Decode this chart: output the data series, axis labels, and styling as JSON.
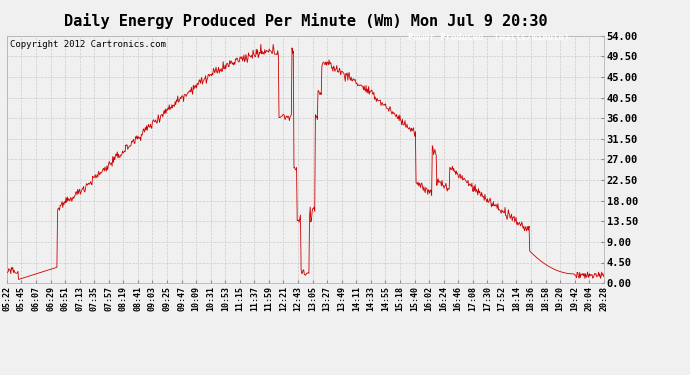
{
  "title": "Daily Energy Produced Per Minute (Wm) Mon Jul 9 20:30",
  "copyright": "Copyright 2012 Cartronics.com",
  "legend_label": "Power Produced  (watts/minute)",
  "legend_bg": "#cc0000",
  "legend_text_color": "#ffffff",
  "ymin": 0.0,
  "ymax": 54.0,
  "yticks": [
    0.0,
    4.5,
    9.0,
    13.5,
    18.0,
    22.5,
    27.0,
    31.5,
    36.0,
    40.5,
    45.0,
    49.5,
    54.0
  ],
  "line_color": "#cc0000",
  "bg_color": "#f0f0f0",
  "grid_color": "#cccccc",
  "title_fontsize": 11,
  "x_labels": [
    "05:22",
    "05:45",
    "06:07",
    "06:29",
    "06:51",
    "07:13",
    "07:35",
    "07:57",
    "08:19",
    "08:41",
    "09:03",
    "09:25",
    "09:47",
    "10:09",
    "10:31",
    "10:53",
    "11:15",
    "11:37",
    "11:59",
    "12:21",
    "12:43",
    "13:05",
    "13:27",
    "13:49",
    "14:11",
    "14:33",
    "14:55",
    "15:18",
    "15:40",
    "16:02",
    "16:24",
    "16:46",
    "17:08",
    "17:30",
    "17:52",
    "18:14",
    "18:36",
    "18:58",
    "19:20",
    "19:42",
    "20:04",
    "20:28"
  ],
  "num_points": 920
}
